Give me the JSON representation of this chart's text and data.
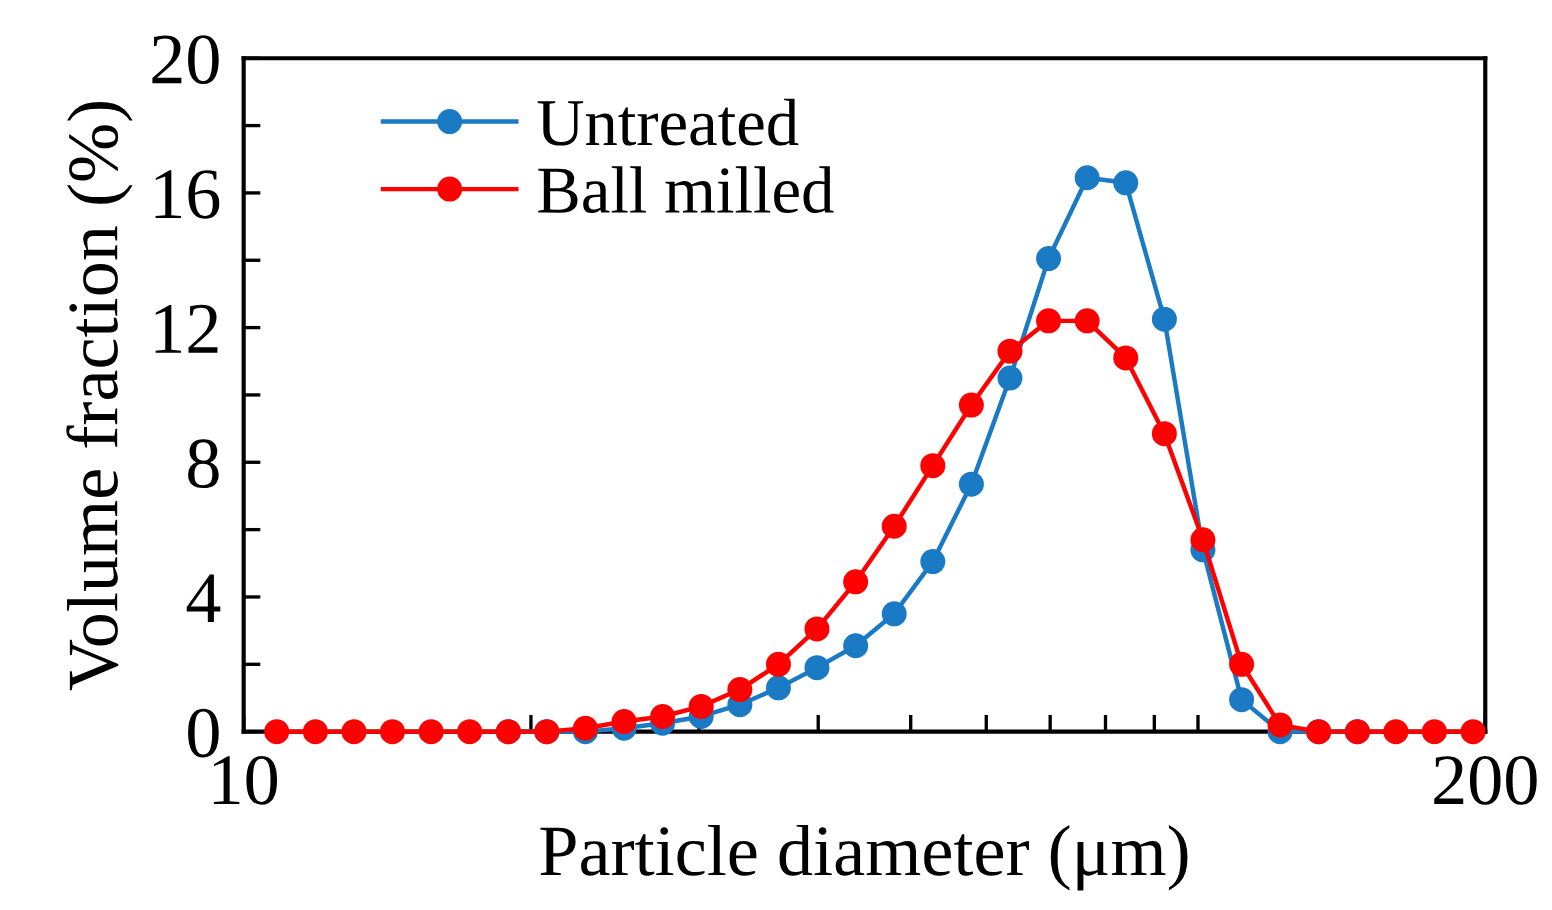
{
  "chart_data": {
    "type": "line",
    "xlabel": "Particle diameter (μm)",
    "ylabel": "Volume fraction (%)",
    "x": [
      10.83,
      11.89,
      13.05,
      14.32,
      15.72,
      17.25,
      18.94,
      20.78,
      22.81,
      25.04,
      27.48,
      30.16,
      33.11,
      36.34,
      39.88,
      43.78,
      48.05,
      52.74,
      57.88,
      63.53,
      69.73,
      76.54,
      84.01,
      92.21,
      101.2,
      111.1,
      121.9,
      133.8,
      146.9,
      161.2,
      176.9,
      194.2
    ],
    "series": [
      {
        "name": "Untreated",
        "color": "#1a7ac4",
        "values": [
          null,
          null,
          null,
          null,
          null,
          null,
          0,
          0,
          0,
          0.1,
          0.25,
          0.45,
          0.8,
          1.3,
          1.9,
          2.55,
          3.5,
          5.05,
          7.35,
          10.5,
          14.05,
          16.45,
          16.3,
          12.25,
          5.4,
          0.95,
          0,
          0,
          0,
          null,
          null,
          null
        ]
      },
      {
        "name": "Ball milled",
        "color": "#ff0000",
        "values": [
          0,
          0,
          0,
          0,
          0,
          0,
          0,
          0,
          0.1,
          0.3,
          0.45,
          0.75,
          1.25,
          2.0,
          3.05,
          4.45,
          6.1,
          7.9,
          9.7,
          11.3,
          12.2,
          12.2,
          11.1,
          8.85,
          5.7,
          2.0,
          0.2,
          0,
          0,
          0,
          0,
          0
        ]
      }
    ],
    "log": "x",
    "xlim": [
      10,
      200
    ],
    "xticks": [
      10,
      {
        "value": 20,
        "label": null
      },
      {
        "value": 30,
        "label": null
      },
      {
        "value": 40,
        "label": null
      },
      {
        "value": 50,
        "label": null
      },
      {
        "value": 60,
        "label": null
      },
      {
        "value": 70,
        "label": null
      },
      {
        "value": 80,
        "label": null
      },
      {
        "value": 90,
        "label": null
      },
      {
        "value": 100,
        "label": null
      },
      200
    ],
    "ylim": [
      0,
      20
    ],
    "yticks": [
      0,
      {
        "value": 2,
        "label": null
      },
      4,
      {
        "value": 6,
        "label": null
      },
      8,
      {
        "value": 10,
        "label": null
      },
      12,
      {
        "value": 14,
        "label": null
      },
      16,
      {
        "value": 18,
        "label": null
      },
      20
    ],
    "grid": false,
    "legend": "top left",
    "marker": "circle",
    "line_style": "solid"
  }
}
